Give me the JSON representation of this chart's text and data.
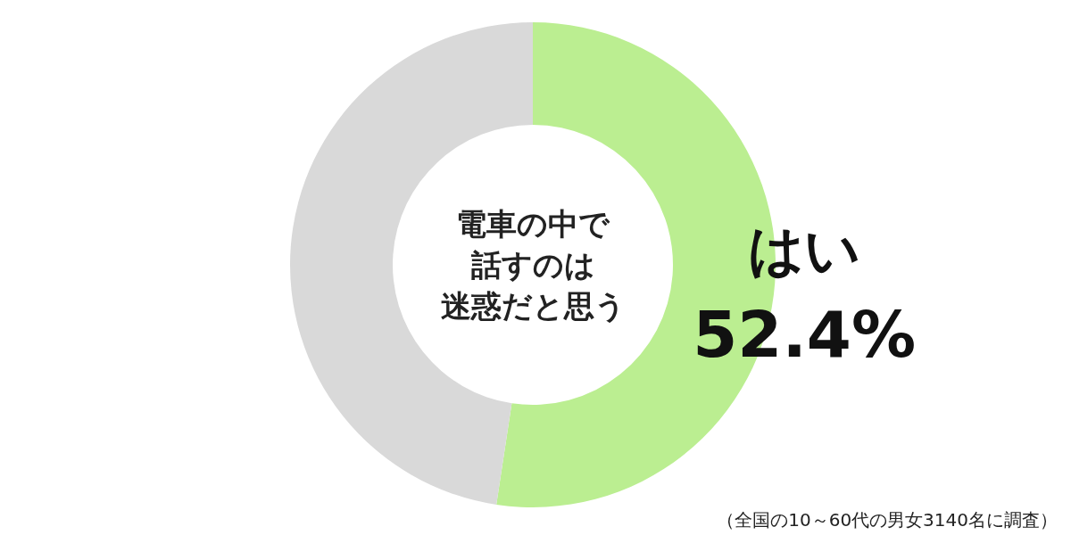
{
  "chart_data": {
    "type": "donut",
    "title": "電車の中で話すのは迷惑だと思う",
    "categories": [
      "はい",
      null
    ],
    "values": [
      52.4,
      47.6
    ],
    "colors": [
      "#bbee91",
      "#d9d9d9"
    ],
    "value_labels": [
      "52.4%",
      null
    ],
    "annotations": [
      "（全国の10～60代の男女3140名に調査）"
    ]
  }
}
